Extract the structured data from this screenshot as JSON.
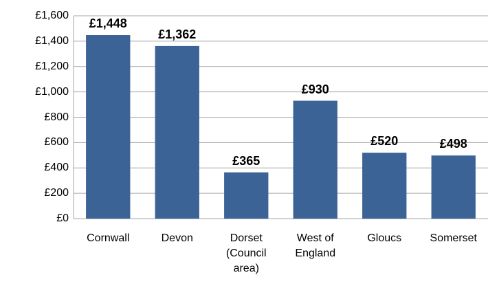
{
  "chart_data": {
    "type": "bar",
    "categories": [
      "Cornwall",
      "Devon",
      "Dorset (Council area)",
      "West of England",
      "Gloucs",
      "Somerset"
    ],
    "values": [
      1448,
      1362,
      365,
      930,
      520,
      498
    ],
    "value_labels": [
      "£1,448",
      "£1,362",
      "£365",
      "£930",
      "£520",
      "£498"
    ],
    "color": "#3b6396",
    "ylim": [
      0,
      1600
    ],
    "yticks": [
      {
        "value": 0,
        "label": "£0"
      },
      {
        "value": 200,
        "label": "£200"
      },
      {
        "value": 400,
        "label": "£400"
      },
      {
        "value": 600,
        "label": "£600"
      },
      {
        "value": 800,
        "label": "£800"
      },
      {
        "value": 1000,
        "label": "£1,000"
      },
      {
        "value": 1200,
        "label": "£1,200"
      },
      {
        "value": 1400,
        "label": "£1,400"
      },
      {
        "value": 1600,
        "label": "£1,600"
      }
    ],
    "grid": true
  }
}
